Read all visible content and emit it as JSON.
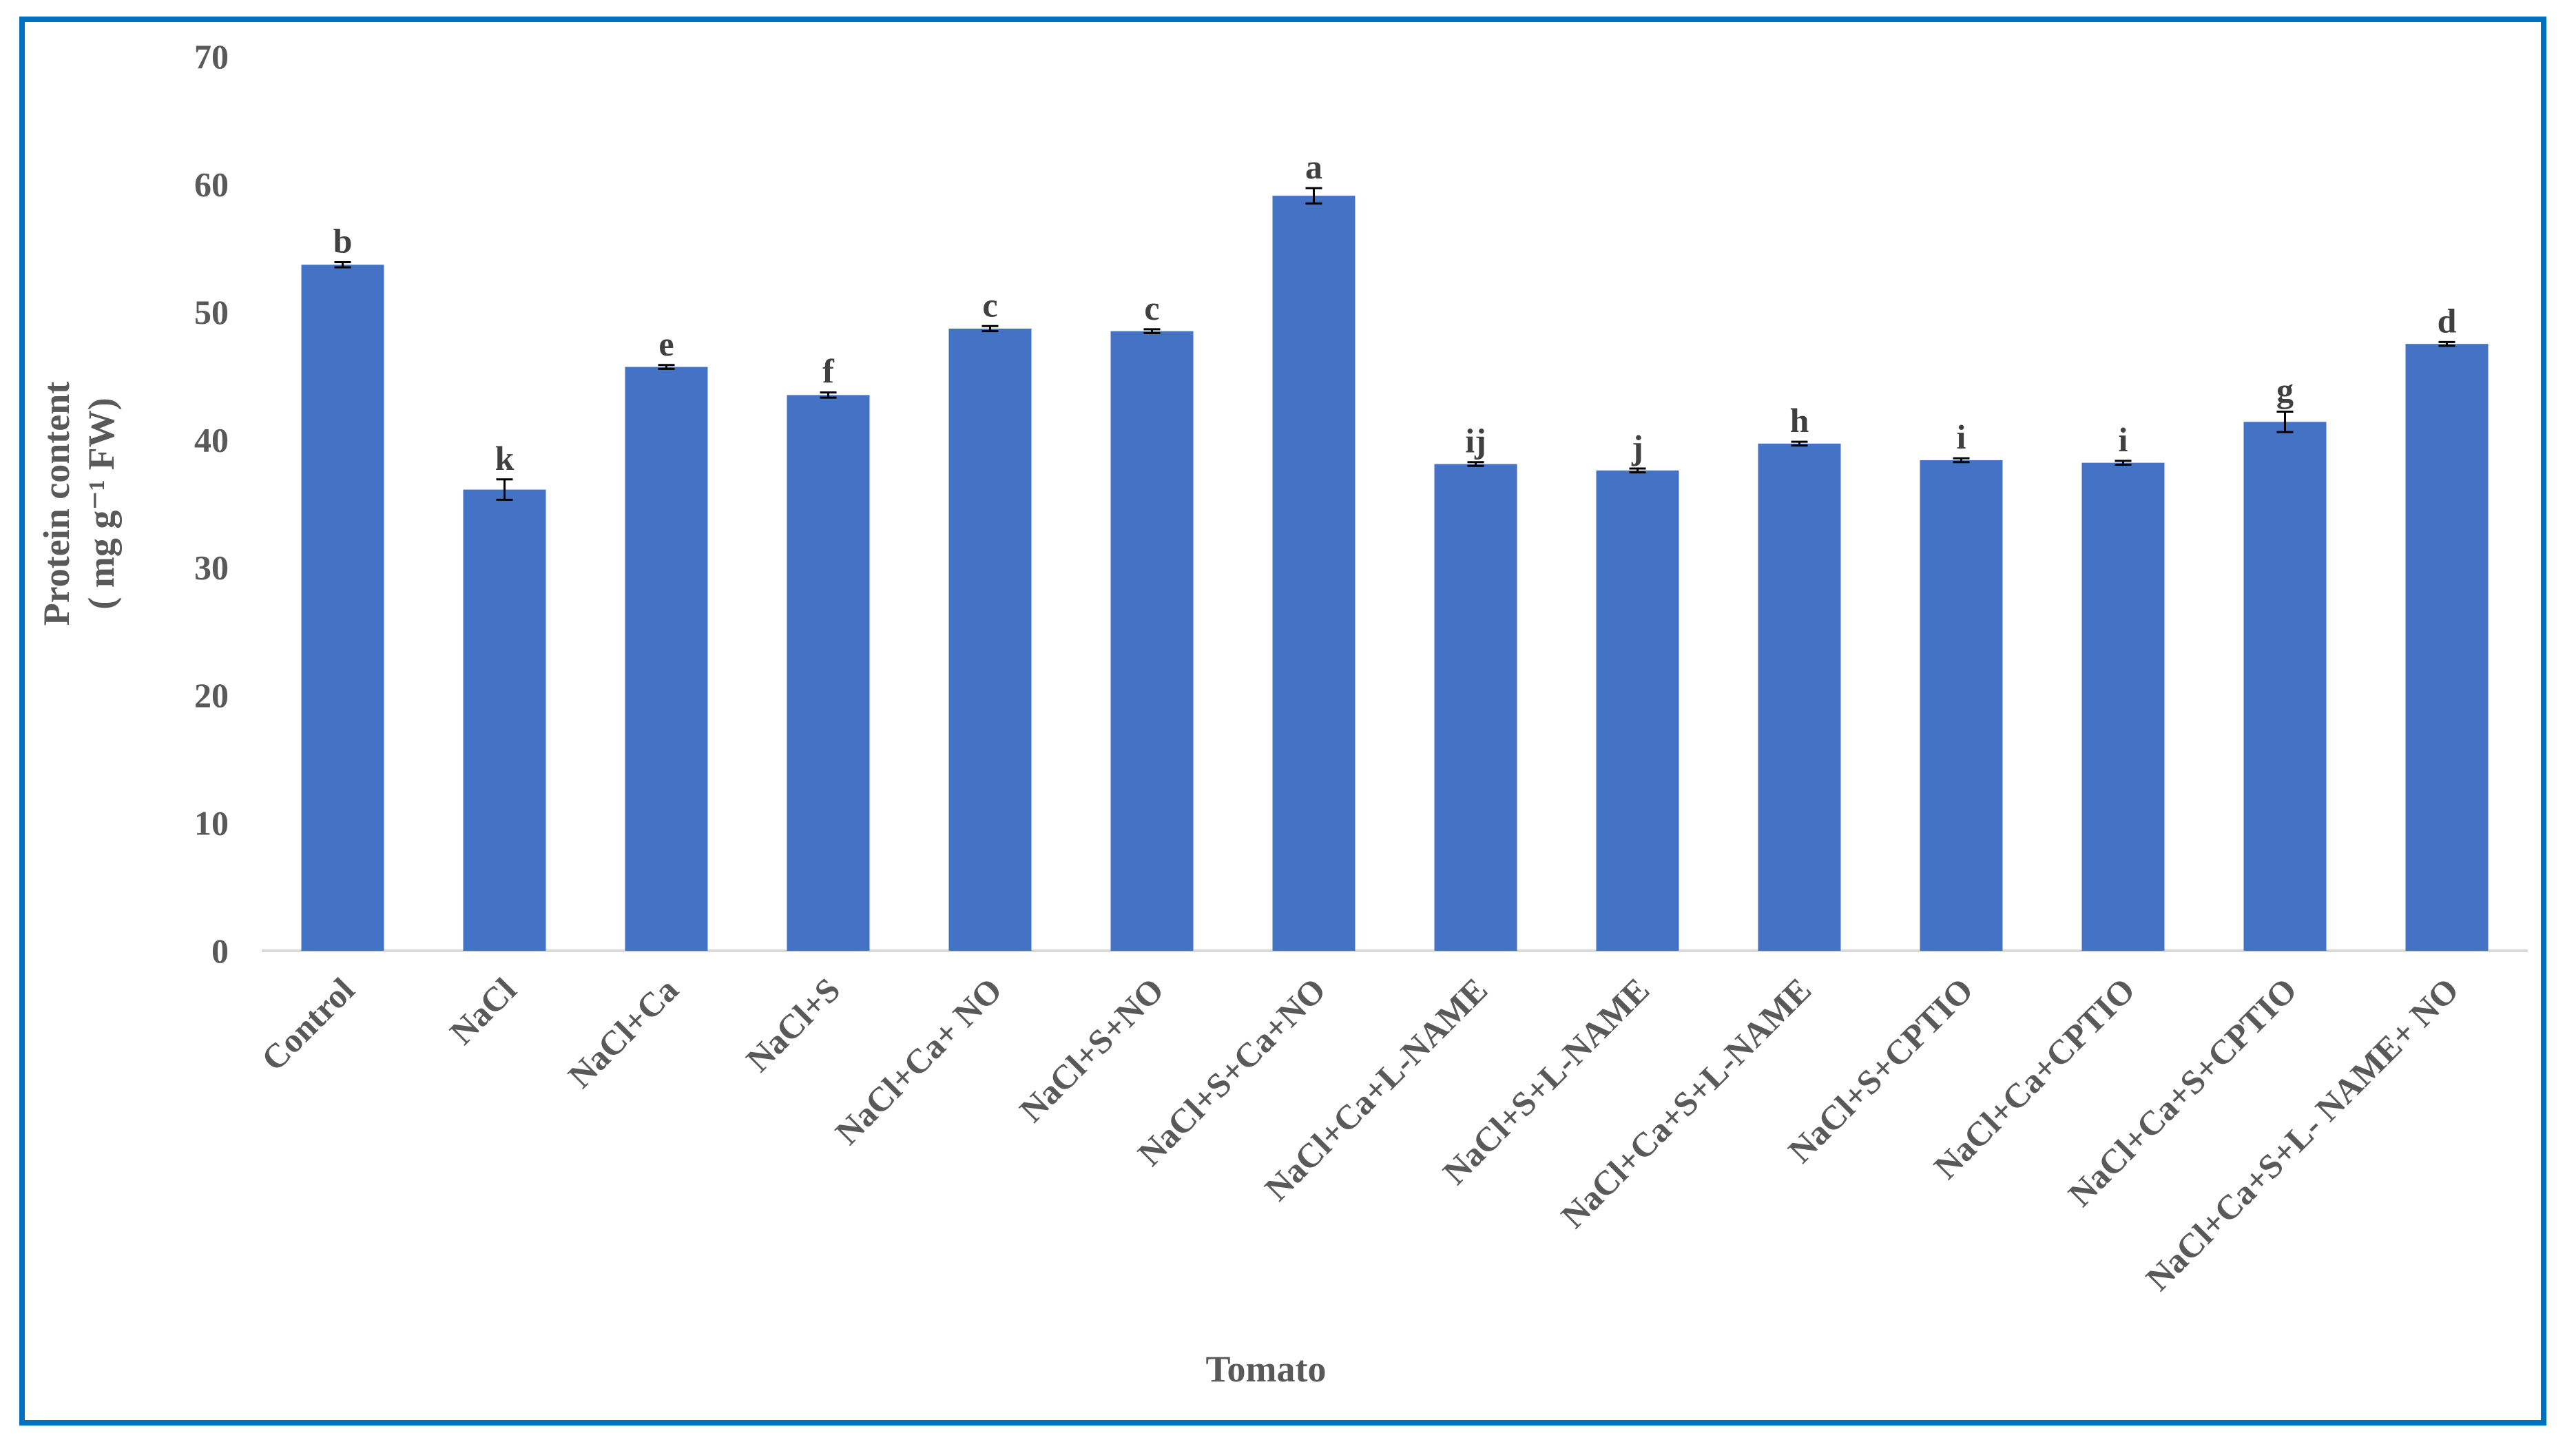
{
  "colors": {
    "frame": "#0070C0",
    "bar": "#4472C4",
    "text": "#595959",
    "axis": "#D9D9D9"
  },
  "chart_data": {
    "type": "bar",
    "title": "",
    "xlabel": "Tomato",
    "ylabel_lines": [
      "Protein content",
      "( mg g⁻¹ FW)"
    ],
    "ylim": [
      0,
      70
    ],
    "yticks": [
      0,
      10,
      20,
      30,
      40,
      50,
      60,
      70
    ],
    "grid": false,
    "categories": [
      "Control",
      "NaCl",
      "NaCl+Ca",
      "NaCl+S",
      "NaCl+Ca+ NO",
      "NaCl+S+NO",
      "NaCl+S+Ca+NO",
      "NaCl+Ca+L-NAME",
      "NaCl+S+L-NAME",
      "NaCl+Ca+S+L-NAME",
      "NaCl+S+CPTIO",
      "NaCl+Ca+CPTIO",
      "NaCl+Ca+S+CPTIO",
      "NaCl+Ca+S+L- NAME+ NO"
    ],
    "values": [
      53.7,
      36.1,
      45.7,
      43.5,
      48.7,
      48.5,
      59.1,
      38.1,
      37.6,
      39.7,
      38.4,
      38.2,
      41.4,
      47.5
    ],
    "errors": [
      0.2,
      0.8,
      0.15,
      0.2,
      0.2,
      0.15,
      0.6,
      0.15,
      0.15,
      0.15,
      0.15,
      0.15,
      0.8,
      0.15
    ],
    "significance_letters": [
      "b",
      "k",
      "e",
      "f",
      "c",
      "c",
      "a",
      "ij",
      "j",
      "h",
      "i",
      "i",
      "g",
      "d"
    ]
  }
}
